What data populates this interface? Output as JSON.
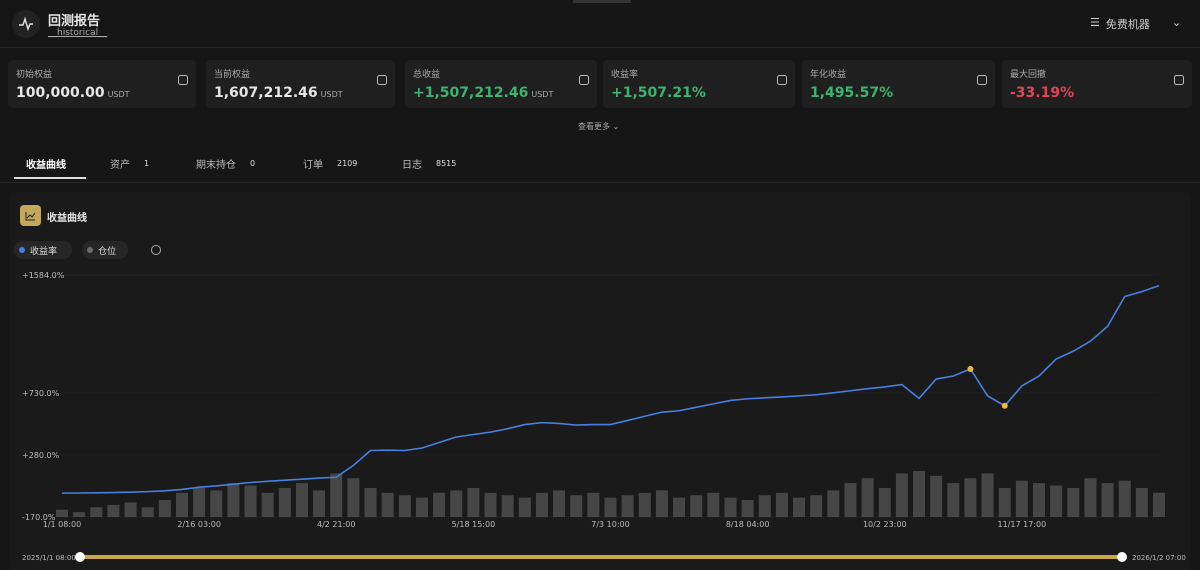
{
  "header": {
    "title": "回测报告",
    "subtitle": "__historical__",
    "button": "免费机器"
  },
  "stats": [
    {
      "label": "初始权益",
      "value": "100,000.00",
      "unit": "USDT"
    },
    {
      "label": "当前权益",
      "value": "1,607,212.46",
      "unit": "USDT"
    },
    {
      "label": "总收益",
      "value": "+1,507,212.46",
      "unit": "USDT"
    },
    {
      "label": "收益率",
      "value": "+1,507.21%"
    },
    {
      "label": "年化收益",
      "value": "1,495.57%"
    },
    {
      "label": "最大回撤",
      "value": "-33.19%"
    }
  ],
  "more": "查看更多",
  "tabs": [
    {
      "label": "收益曲线"
    },
    {
      "label": "资产",
      "count": "1"
    },
    {
      "label": "期末持仓",
      "count": "0"
    },
    {
      "label": "订单",
      "count": "2109"
    },
    {
      "label": "日志",
      "count": "8515"
    }
  ],
  "panel_title": "收益曲线",
  "chart_data": {
    "type": "line",
    "categories": [
      "1/1 08:00",
      null,
      null,
      null,
      null,
      null,
      null,
      null,
      "2/16 03:00",
      null,
      null,
      null,
      null,
      null,
      null,
      null,
      "4/2 21:00",
      null,
      null,
      null,
      null,
      null,
      null,
      null,
      "5/18 15:00",
      null,
      null,
      null,
      null,
      null,
      null,
      null,
      "7/3 10:00",
      null,
      null,
      null,
      null,
      null,
      null,
      null,
      "8/18 04:00",
      null,
      null,
      null,
      null,
      null,
      null,
      null,
      "10/2 23:00",
      null,
      null,
      null,
      null,
      null,
      null,
      null,
      "11/17 17:00",
      null,
      null,
      null,
      null,
      null,
      null,
      null,
      null
    ],
    "series": [
      {
        "name": "收益率",
        "type": "line",
        "color": "#4a7fe0",
        "values": [
          3,
          4,
          5,
          7,
          10,
          14,
          20,
          30,
          46,
          55,
          68,
          80,
          89,
          97,
          104,
          112,
          118,
          204,
          312,
          314,
          312,
          330,
          370,
          410,
          428,
          445,
          470,
          500,
          514,
          508,
          496,
          500,
          500,
          530,
          560,
          590,
          600,
          625,
          650,
          675,
          687,
          694,
          700,
          708,
          716,
          730,
          745,
          760,
          773,
          790,
          690,
          830,
          852,
          903,
          708,
          636,
          780,
          852,
          975,
          1032,
          1104,
          1212,
          1428,
          1464,
          1507
        ]
      },
      {
        "name": "仓位",
        "type": "bar",
        "axis": "y2",
        "color": "#6b6b6b",
        "values": [
          0.15,
          0.1,
          0.2,
          0.25,
          0.3,
          0.2,
          0.35,
          0.5,
          0.6,
          0.55,
          0.7,
          0.65,
          0.5,
          0.6,
          0.7,
          0.55,
          0.9,
          0.8,
          0.6,
          0.5,
          0.45,
          0.4,
          0.5,
          0.55,
          0.6,
          0.5,
          0.45,
          0.4,
          0.5,
          0.55,
          0.45,
          0.5,
          0.4,
          0.45,
          0.5,
          0.55,
          0.4,
          0.45,
          0.5,
          0.4,
          0.35,
          0.45,
          0.5,
          0.4,
          0.45,
          0.55,
          0.7,
          0.8,
          0.6,
          0.9,
          0.95,
          0.85,
          0.7,
          0.8,
          0.9,
          0.6,
          0.75,
          0.7,
          0.65,
          0.6,
          0.8,
          0.7,
          0.75,
          0.6,
          0.5
        ]
      }
    ],
    "ylim": [
      -170,
      1584
    ],
    "yticks": [
      {
        "value": 1584,
        "label": "+1584.0%"
      },
      {
        "value": 730,
        "label": "+730.0%"
      },
      {
        "value": 280,
        "label": "+280.0%"
      },
      {
        "value": -170,
        "label": "-170.0%"
      }
    ],
    "y2lim": [
      0,
      5
    ],
    "grid": true
  },
  "range": {
    "start": "2025/1/1 08:00",
    "end": "2026/1/2 07:00"
  }
}
